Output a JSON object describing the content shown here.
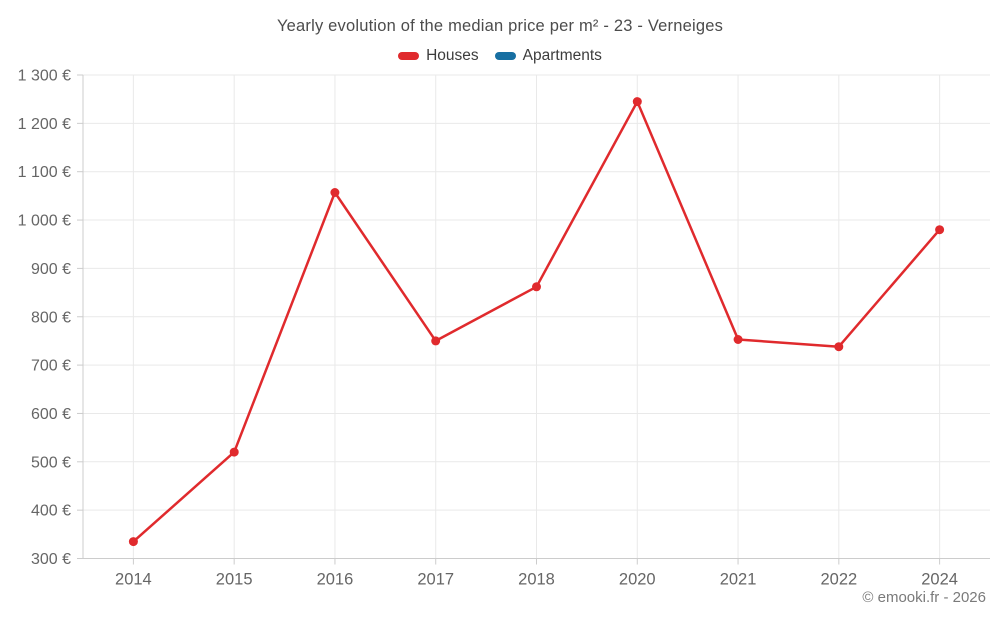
{
  "title": "Yearly evolution of the median price per m² - 23 - Verneiges",
  "copyright": "© emooki.fr - 2026",
  "colors": {
    "houses": "#e02a2d",
    "apartments": "#176fa2",
    "grid": "#e9e9e9",
    "axis": "#cccccc",
    "tick_text": "#666666",
    "title_text": "#4c4c4c",
    "copyright_text": "#7a7a7a"
  },
  "chart_data": {
    "type": "line",
    "title": "Yearly evolution of the median price per m² - 23 - Verneiges",
    "categories": [
      "2014",
      "2015",
      "2016",
      "2017",
      "2018",
      "2020",
      "2021",
      "2022",
      "2024"
    ],
    "series": [
      {
        "name": "Houses",
        "color": "#e02a2d",
        "values": [
          335,
          520,
          1057,
          750,
          862,
          1245,
          753,
          738,
          980
        ]
      },
      {
        "name": "Apartments",
        "color": "#176fa2",
        "values": [
          null,
          null,
          null,
          null,
          null,
          null,
          null,
          null,
          null
        ]
      }
    ],
    "xlabel": "",
    "ylabel": "",
    "ylim": [
      300,
      1300
    ],
    "ytick_step": 100,
    "ytick_labels": [
      "300 €",
      "400 €",
      "500 €",
      "600 €",
      "700 €",
      "800 €",
      "900 €",
      "1 000 €",
      "1 100 €",
      "1 200 €",
      "1 300 €"
    ],
    "grid": true,
    "legend_position": "top",
    "annotations": [
      "© emooki.fr - 2026"
    ]
  }
}
